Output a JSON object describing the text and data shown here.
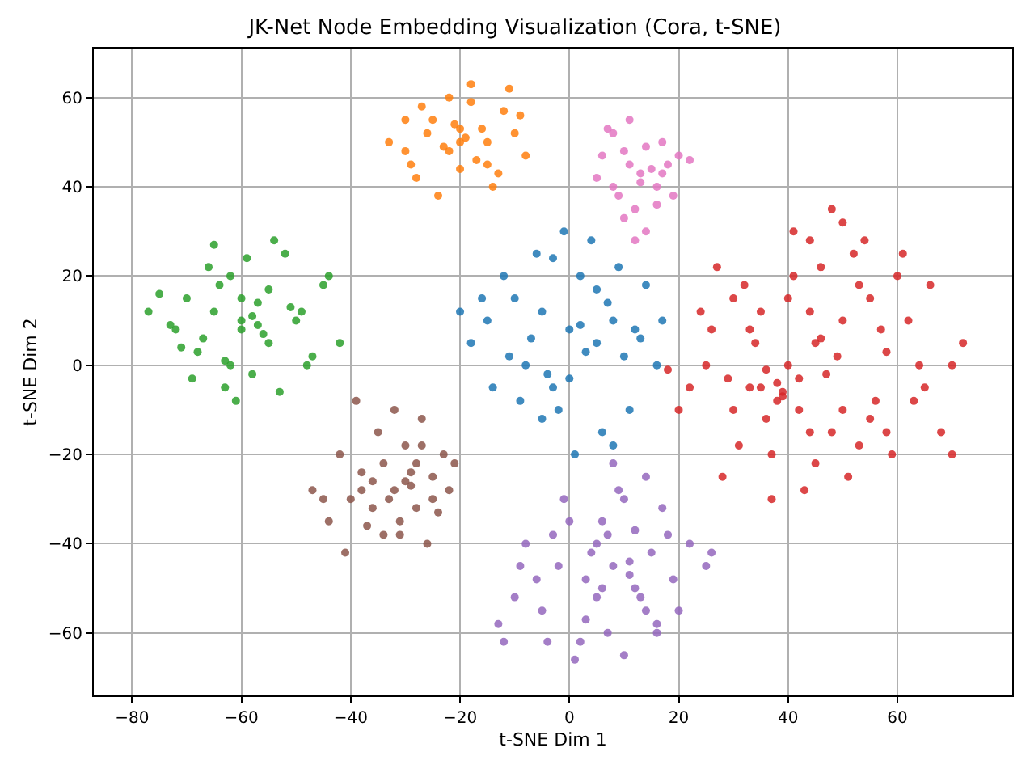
{
  "chart_data": {
    "type": "scatter",
    "title": "JK-Net Node Embedding Visualization (Cora, t-SNE)",
    "xlabel": "t-SNE Dim 1",
    "ylabel": "t-SNE Dim 2",
    "xlim": [
      -87,
      81
    ],
    "ylim": [
      -74,
      71
    ],
    "xticks": [
      -80,
      -60,
      -40,
      -20,
      0,
      20,
      40,
      60
    ],
    "yticks": [
      -60,
      -40,
      -20,
      0,
      20,
      40,
      60
    ],
    "grid": true,
    "marker": "circle",
    "series": [
      {
        "color": "#1f77b4",
        "x": [
          0,
          -5,
          5,
          -10,
          10,
          -15,
          2,
          -3,
          8,
          -8,
          14,
          -18,
          4,
          -2,
          6,
          -12,
          12,
          -6,
          1,
          -20,
          16,
          -4,
          7,
          -9,
          3,
          -14,
          9,
          -1,
          -7,
          11,
          -11,
          5,
          0,
          17,
          -16,
          2,
          -5,
          8,
          -3,
          13
        ],
        "values": [
          8,
          12,
          5,
          15,
          2,
          10,
          20,
          -5,
          10,
          0,
          18,
          5,
          28,
          -10,
          -15,
          20,
          8,
          25,
          -20,
          12,
          0,
          -2,
          14,
          -8,
          3,
          -5,
          22,
          30,
          6,
          -10,
          2,
          17,
          -3,
          10,
          15,
          9,
          -12,
          -18,
          24,
          6
        ]
      },
      {
        "color": "#ff7f0e",
        "x": [
          -20,
          -25,
          -15,
          -30,
          -10,
          -22,
          -18,
          -28,
          -12,
          -8,
          -33,
          -24,
          -16,
          -20,
          -27,
          -14,
          -19,
          -23,
          -11,
          -30,
          -17,
          -21,
          -26,
          -13,
          -9,
          -29,
          -18,
          -22,
          -15,
          -20
        ],
        "values": [
          50,
          55,
          45,
          48,
          52,
          60,
          63,
          42,
          57,
          47,
          50,
          38,
          53,
          44,
          58,
          40,
          51,
          49,
          62,
          55,
          46,
          54,
          52,
          43,
          56,
          45,
          59,
          48,
          50,
          53
        ]
      },
      {
        "color": "#2ca02c",
        "x": [
          -60,
          -65,
          -55,
          -70,
          -50,
          -62,
          -58,
          -75,
          -45,
          -68,
          -52,
          -63,
          -57,
          -72,
          -48,
          -66,
          -54,
          -60,
          -42,
          -77,
          -61,
          -64,
          -56,
          -69,
          -51,
          -59,
          -47,
          -73,
          -62,
          -55,
          -67,
          -58,
          -44,
          -53,
          -65,
          -60,
          -71,
          -49,
          -57,
          -63
        ],
        "values": [
          8,
          12,
          5,
          15,
          10,
          20,
          -2,
          16,
          18,
          3,
          25,
          -5,
          14,
          8,
          0,
          22,
          28,
          10,
          5,
          12,
          -8,
          18,
          7,
          -3,
          13,
          24,
          2,
          9,
          0,
          17,
          6,
          11,
          20,
          -6,
          27,
          15,
          4,
          12,
          9,
          1
        ]
      },
      {
        "color": "#d62728",
        "x": [
          40,
          35,
          45,
          50,
          30,
          55,
          38,
          42,
          60,
          25,
          48,
          33,
          65,
          20,
          52,
          37,
          44,
          58,
          28,
          70,
          41,
          36,
          47,
          53,
          32,
          62,
          39,
          46,
          56,
          24,
          68,
          43,
          34,
          50,
          59,
          27,
          72,
          38,
          45,
          54,
          31,
          63,
          40,
          49,
          57,
          22,
          66,
          36,
          44,
          51,
          29,
          61,
          42,
          35,
          48,
          55,
          18,
          70,
          39,
          46,
          53,
          33,
          64,
          26,
          58,
          41,
          37,
          50,
          44,
          30
        ],
        "values": [
          0,
          -5,
          5,
          10,
          -10,
          15,
          -8,
          -3,
          20,
          0,
          -15,
          8,
          -5,
          -10,
          25,
          -20,
          12,
          3,
          -25,
          0,
          30,
          -12,
          -2,
          -18,
          18,
          10,
          -7,
          22,
          -8,
          12,
          -15,
          -28,
          5,
          32,
          -20,
          22,
          5,
          -4,
          -22,
          28,
          -18,
          -8,
          15,
          2,
          8,
          -5,
          18,
          -1,
          -15,
          -25,
          -3,
          25,
          -10,
          12,
          35,
          -12,
          -1,
          -20,
          -6,
          6,
          18,
          -5,
          0,
          8,
          -15,
          20,
          -30,
          -10,
          28,
          15
        ]
      },
      {
        "color": "#9467bd",
        "x": [
          8,
          5,
          12,
          0,
          15,
          -5,
          10,
          3,
          18,
          -10,
          7,
          14,
          -2,
          20,
          6,
          11,
          -8,
          16,
          2,
          25,
          9,
          -12,
          13,
          4,
          -3,
          17,
          10,
          -6,
          22,
          1,
          8,
          14,
          -13,
          5,
          11,
          19,
          -1,
          7,
          26,
          3,
          -9,
          12,
          6,
          16,
          -4
        ],
        "values": [
          -45,
          -40,
          -50,
          -35,
          -42,
          -55,
          -30,
          -48,
          -38,
          -52,
          -60,
          -25,
          -45,
          -55,
          -35,
          -47,
          -40,
          -58,
          -62,
          -45,
          -28,
          -62,
          -52,
          -42,
          -38,
          -32,
          -65,
          -48,
          -40,
          -66,
          -22,
          -55,
          -58,
          -52,
          -44,
          -48,
          -30,
          -38,
          -42,
          -57,
          -45,
          -37,
          -50,
          -60,
          -62
        ]
      },
      {
        "color": "#8c564b",
        "x": [
          -32,
          -28,
          -36,
          -25,
          -40,
          -30,
          -22,
          -34,
          -45,
          -27,
          -38,
          -24,
          -31,
          -42,
          -29,
          -35,
          -21,
          -33,
          -26,
          -39,
          -47,
          -30,
          -23,
          -37,
          -28,
          -41,
          -32,
          -25,
          -36,
          -44,
          -29,
          -34,
          -27,
          -31,
          -38
        ],
        "values": [
          -28,
          -22,
          -32,
          -25,
          -30,
          -18,
          -28,
          -38,
          -30,
          -12,
          -24,
          -33,
          -35,
          -20,
          -27,
          -15,
          -22,
          -30,
          -40,
          -8,
          -28,
          -26,
          -20,
          -36,
          -32,
          -42,
          -10,
          -30,
          -26,
          -35,
          -24,
          -22,
          -18,
          -38,
          -28
        ]
      },
      {
        "color": "#e377c2",
        "x": [
          13,
          10,
          16,
          8,
          18,
          12,
          5,
          20,
          14,
          9,
          11,
          17,
          6,
          15,
          12,
          22,
          10,
          13,
          19,
          7,
          14,
          16,
          11,
          8,
          17
        ],
        "values": [
          43,
          48,
          40,
          52,
          45,
          35,
          42,
          47,
          30,
          38,
          55,
          50,
          47,
          44,
          28,
          46,
          33,
          41,
          38,
          53,
          49,
          36,
          45,
          40,
          43
        ]
      }
    ]
  }
}
